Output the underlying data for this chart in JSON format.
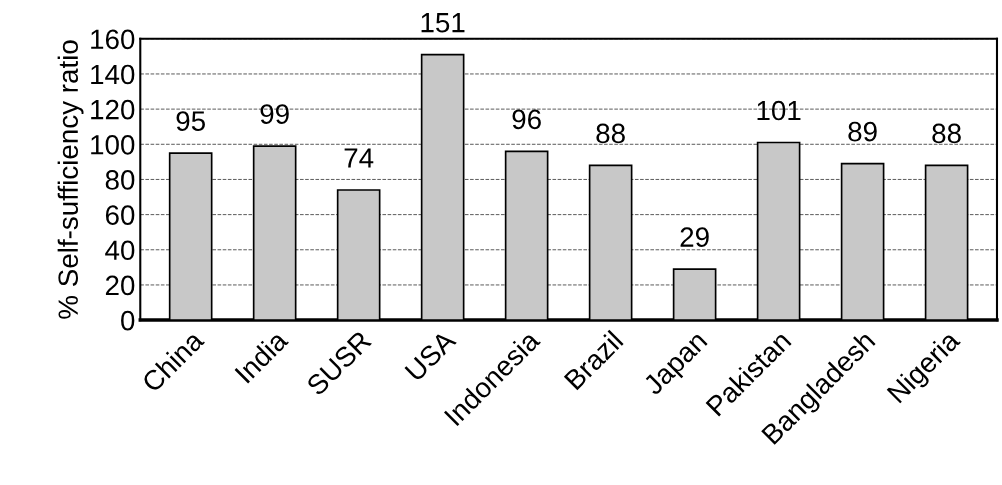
{
  "chart_data": {
    "type": "bar",
    "ylabel": "% Self-sufficiency ratio",
    "categories": [
      "China",
      "India",
      "SUSR",
      "USA",
      "Indonesia",
      "Brazil",
      "Japan",
      "Pakistan",
      "Bangladesh",
      "Nigeria"
    ],
    "values": [
      95,
      99,
      74,
      151,
      96,
      88,
      29,
      101,
      89,
      88
    ],
    "color": "#c8c8c8",
    "ylim": [
      0,
      160
    ],
    "yticks": [
      0,
      20,
      40,
      60,
      80,
      100,
      120,
      140,
      160
    ],
    "grid": "y",
    "data_labels": true
  }
}
